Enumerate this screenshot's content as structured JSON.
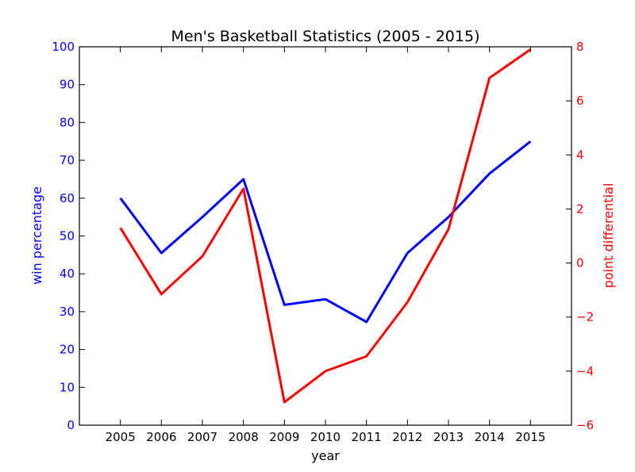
{
  "chart_data": {
    "type": "line",
    "title": "Men's Basketball Statistics (2005 - 2015)",
    "xlabel": "year",
    "ylabel_left": "win percentage",
    "ylabel_right": "point differential",
    "x": [
      2005,
      2006,
      2007,
      2008,
      2009,
      2010,
      2011,
      2012,
      2013,
      2014,
      2015
    ],
    "xlim": [
      2004,
      2016
    ],
    "ylim_left": [
      0,
      100
    ],
    "ylim_right": [
      -6,
      8
    ],
    "x_ticks": [
      "2005",
      "2006",
      "2007",
      "2008",
      "2009",
      "2010",
      "2011",
      "2012",
      "2013",
      "2014",
      "2015"
    ],
    "y_ticks_left": [
      "0",
      "10",
      "20",
      "30",
      "40",
      "50",
      "60",
      "70",
      "80",
      "90",
      "100"
    ],
    "y_ticks_right": [
      "−6",
      "−4",
      "−2",
      "0",
      "2",
      "4",
      "6",
      "8"
    ],
    "grid": false,
    "legend": "none",
    "series": [
      {
        "axis": "left",
        "color": "#0000ff",
        "values": [
          60,
          45.5,
          55,
          65,
          31.8,
          33.3,
          27.3,
          45.5,
          55,
          66.5,
          75
        ]
      },
      {
        "axis": "right",
        "color": "#ff0000",
        "values": [
          1.3,
          -1.15,
          0.25,
          2.75,
          -5.15,
          -4.0,
          -3.45,
          -1.45,
          1.25,
          6.85,
          7.9
        ]
      }
    ]
  }
}
